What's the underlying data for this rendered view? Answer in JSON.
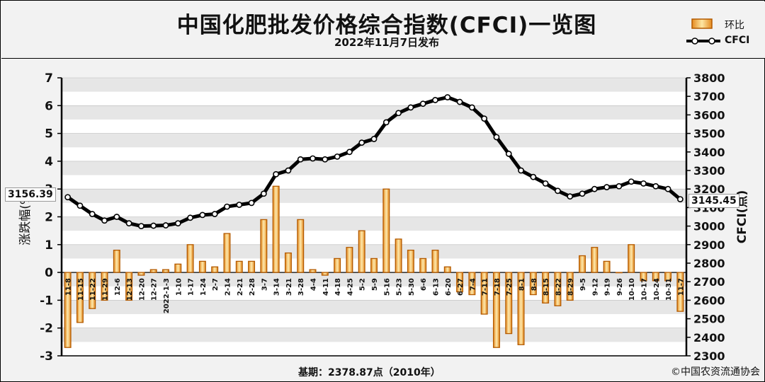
{
  "header": {
    "title": "中国化肥批发价格综合指数(CFCI)一览图",
    "subtitle": "2022年11月7日发布"
  },
  "legend": {
    "bar_label": "环比",
    "line_label": "CFCI"
  },
  "footer": {
    "base_text": "基期：2378.87点（2010年）",
    "copyright": "©中国农资流通协会"
  },
  "value_boxes": {
    "start": "3156.39",
    "end": "3145.45"
  },
  "colors": {
    "bar_fill": "#f2a93b",
    "bar_stroke": "#b35a00",
    "line": "#000000",
    "plot_bg_stripe": "#e6e6e6"
  },
  "chart_data": {
    "type": "bar",
    "categories": [
      "11-8",
      "11-15",
      "11-22",
      "11-29",
      "12-6",
      "12-13",
      "12-20",
      "12-27",
      "2022-1-3",
      "1-10",
      "1-17",
      "1-24",
      "2-7",
      "2-14",
      "2-21",
      "2-28",
      "3-7",
      "3-14",
      "3-21",
      "3-28",
      "4-4",
      "4-11",
      "4-18",
      "4-25",
      "5-2",
      "5-9",
      "5-16",
      "5-23",
      "5-30",
      "6-6",
      "6-13",
      "6-20",
      "6-27",
      "7-4",
      "7-11",
      "7-18",
      "7-25",
      "8-1",
      "8-8",
      "8-15",
      "8-22",
      "8-29",
      "9-5",
      "9-12",
      "9-19",
      "9-26",
      "10-10",
      "10-17",
      "10-24",
      "10-31",
      "11-7"
    ],
    "series": [
      {
        "name": "环比",
        "type": "bar",
        "axis": "left",
        "values": [
          -2.7,
          -1.8,
          -1.3,
          -1.0,
          0.8,
          -1.0,
          -0.1,
          0.1,
          0.1,
          0.3,
          1.0,
          0.4,
          0.2,
          1.4,
          0.4,
          0.4,
          1.9,
          3.1,
          0.7,
          1.9,
          0.1,
          -0.1,
          0.5,
          0.9,
          1.5,
          0.5,
          3.0,
          1.2,
          0.8,
          0.5,
          0.8,
          0.2,
          -0.7,
          -0.8,
          -1.5,
          -2.7,
          -2.2,
          -2.6,
          -0.8,
          -1.1,
          -1.2,
          -1.0,
          0.6,
          0.9,
          0.4,
          0.0,
          1.0,
          -0.3,
          -0.3,
          -0.3,
          -1.4
        ]
      },
      {
        "name": "CFCI",
        "type": "line",
        "axis": "right",
        "values": [
          3156,
          3110,
          3065,
          3030,
          3050,
          3015,
          3000,
          3002,
          3004,
          3015,
          3045,
          3060,
          3065,
          3105,
          3115,
          3125,
          3175,
          3280,
          3300,
          3360,
          3365,
          3360,
          3375,
          3400,
          3450,
          3470,
          3560,
          3610,
          3640,
          3660,
          3680,
          3695,
          3670,
          3640,
          3580,
          3480,
          3390,
          3300,
          3265,
          3230,
          3190,
          3160,
          3175,
          3200,
          3210,
          3215,
          3240,
          3230,
          3215,
          3200,
          3145
        ]
      }
    ],
    "y_left": {
      "label": "涨跌幅(%)",
      "min": -3,
      "max": 7,
      "ticks": [
        -3,
        -2,
        -1,
        0,
        1,
        2,
        3,
        4,
        5,
        6,
        7
      ]
    },
    "y_right": {
      "label": "CFCI(点)",
      "min": 2300,
      "max": 3800,
      "ticks": [
        2300,
        2400,
        2500,
        2600,
        2700,
        2800,
        2900,
        3000,
        3100,
        3200,
        3300,
        3400,
        3500,
        3600,
        3700,
        3800
      ]
    },
    "grid": true,
    "legend_position": "top-right"
  }
}
